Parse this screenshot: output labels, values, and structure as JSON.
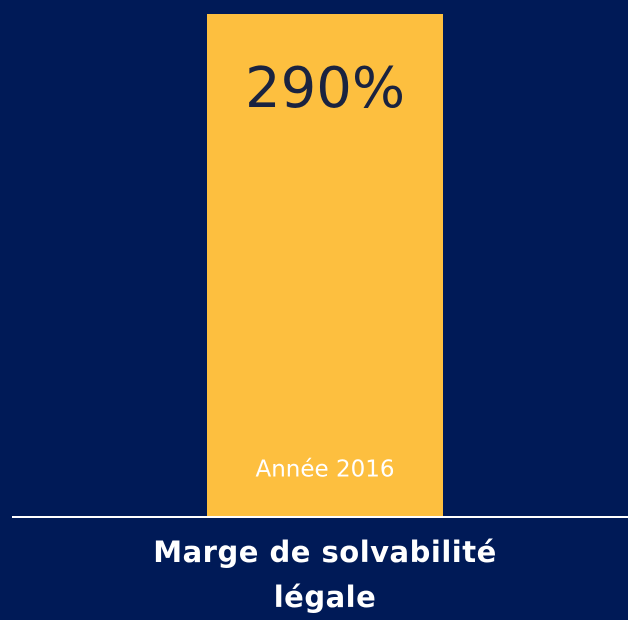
{
  "chart_data": {
    "type": "bar",
    "title": "Marge de solvabilité légale",
    "categories": [
      "Année 2016"
    ],
    "values": [
      290
    ],
    "value_labels": [
      "290%"
    ],
    "color": "#fdbf3f"
  }
}
